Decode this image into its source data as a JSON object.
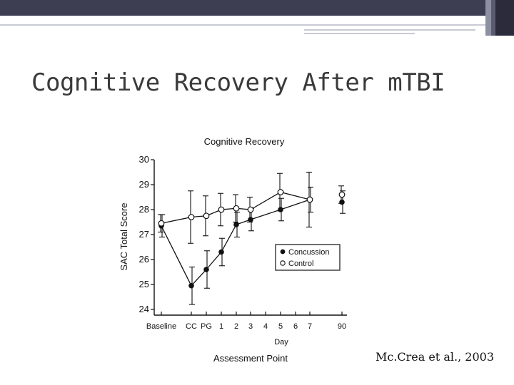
{
  "slide": {
    "title": "Cognitive Recovery After mTBI",
    "citation": "Mc.Crea et al., 2003"
  },
  "colors": {
    "header_bar": "#3e3e52",
    "header_accent_dark": "#2b2b3b",
    "header_accent_mid": "#5a5b6e",
    "header_accent_light": "#8d8fa3",
    "thin_rule": "#c9cbd3",
    "title_text": "#3a3a3a"
  },
  "chart_data": {
    "type": "line",
    "title": "Cognitive Recovery",
    "ylabel": "SAC Total Score",
    "xlabel": "Assessment Point",
    "x_sublabel": "Day",
    "ylim": [
      24,
      30
    ],
    "yticks": [
      24,
      25,
      26,
      27,
      28,
      29,
      30
    ],
    "categories": [
      "Baseline",
      "CC",
      "PG",
      "1",
      "2",
      "3",
      "4",
      "5",
      "6",
      "7",
      "90"
    ],
    "legend_position": "center-right",
    "grid": false,
    "series": [
      {
        "name": "Concussion",
        "marker": "filled-circle",
        "points": [
          {
            "x": "Baseline",
            "y": 27.35,
            "err": 0.45
          },
          {
            "x": "CC",
            "y": 24.95,
            "err": 0.75
          },
          {
            "x": "PG",
            "y": 25.6,
            "err": 0.75
          },
          {
            "x": "1",
            "y": 26.3,
            "err": 0.55
          },
          {
            "x": "2",
            "y": 27.4,
            "err": 0.5
          },
          {
            "x": "3",
            "y": 27.6,
            "err": 0.45
          },
          {
            "x": "5",
            "y": 28.0,
            "err": 0.45
          },
          {
            "x": "7",
            "y": 28.4,
            "err": 0.5
          },
          {
            "x": "90",
            "y": 28.3,
            "err": 0.45
          }
        ]
      },
      {
        "name": "Control",
        "marker": "open-circle",
        "points": [
          {
            "x": "Baseline",
            "y": 27.45,
            "err": 0.35
          },
          {
            "x": "CC",
            "y": 27.7,
            "err": 1.05
          },
          {
            "x": "PG",
            "y": 27.75,
            "err": 0.8
          },
          {
            "x": "1",
            "y": 28.0,
            "err": 0.65
          },
          {
            "x": "2",
            "y": 28.05,
            "err": 0.55
          },
          {
            "x": "3",
            "y": 28.0,
            "err": 0.5
          },
          {
            "x": "5",
            "y": 28.7,
            "err": 0.75
          },
          {
            "x": "7",
            "y": 28.4,
            "err": 1.1
          },
          {
            "x": "90",
            "y": 28.6,
            "err": 0.35
          }
        ]
      }
    ]
  }
}
